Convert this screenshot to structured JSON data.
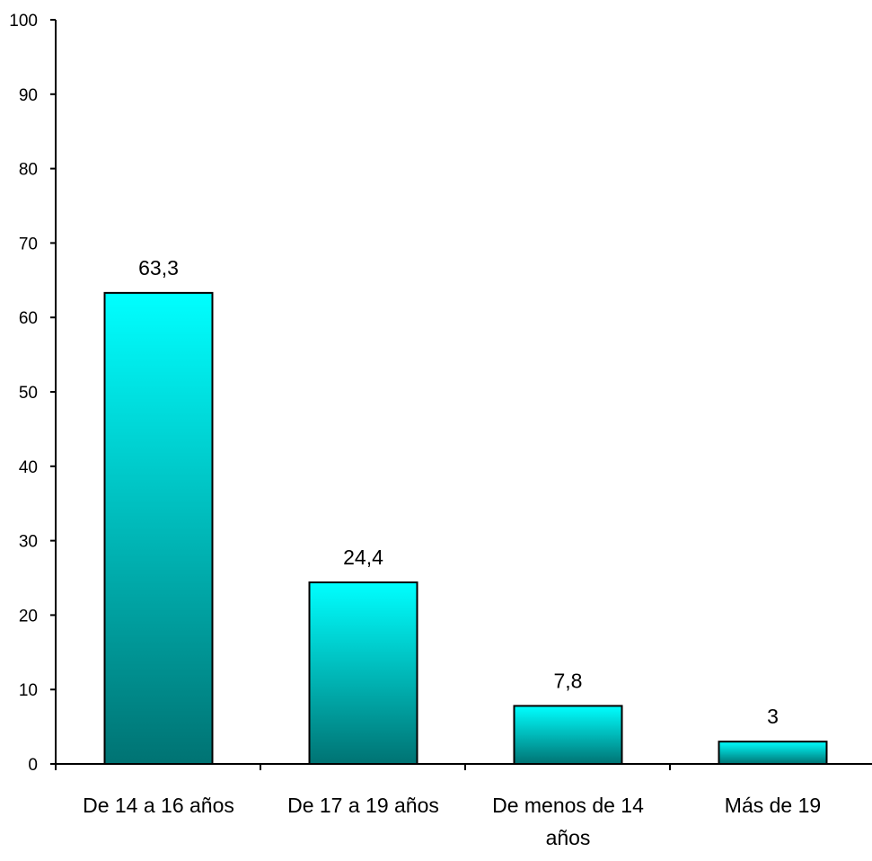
{
  "chart_data": {
    "type": "bar",
    "categories": [
      [
        "De 14 a 16 años"
      ],
      [
        "De 17 a 19 años"
      ],
      [
        "De menos de 14",
        "años"
      ],
      [
        "Más de 19"
      ]
    ],
    "values": [
      63.3,
      24.4,
      7.8,
      3
    ],
    "data_labels": [
      "63,3",
      "24,4",
      "7,8",
      "3"
    ],
    "ylim": [
      0,
      100
    ],
    "yticks": [
      0,
      10,
      20,
      30,
      40,
      50,
      60,
      70,
      80,
      90,
      100
    ],
    "title": "",
    "xlabel": "",
    "ylabel": "",
    "grid": false,
    "legend": "none",
    "colors": {
      "bar_top": "#00ffff",
      "bar_bottom": "#007373",
      "bar_border": "#000000",
      "axis": "#000000"
    }
  }
}
